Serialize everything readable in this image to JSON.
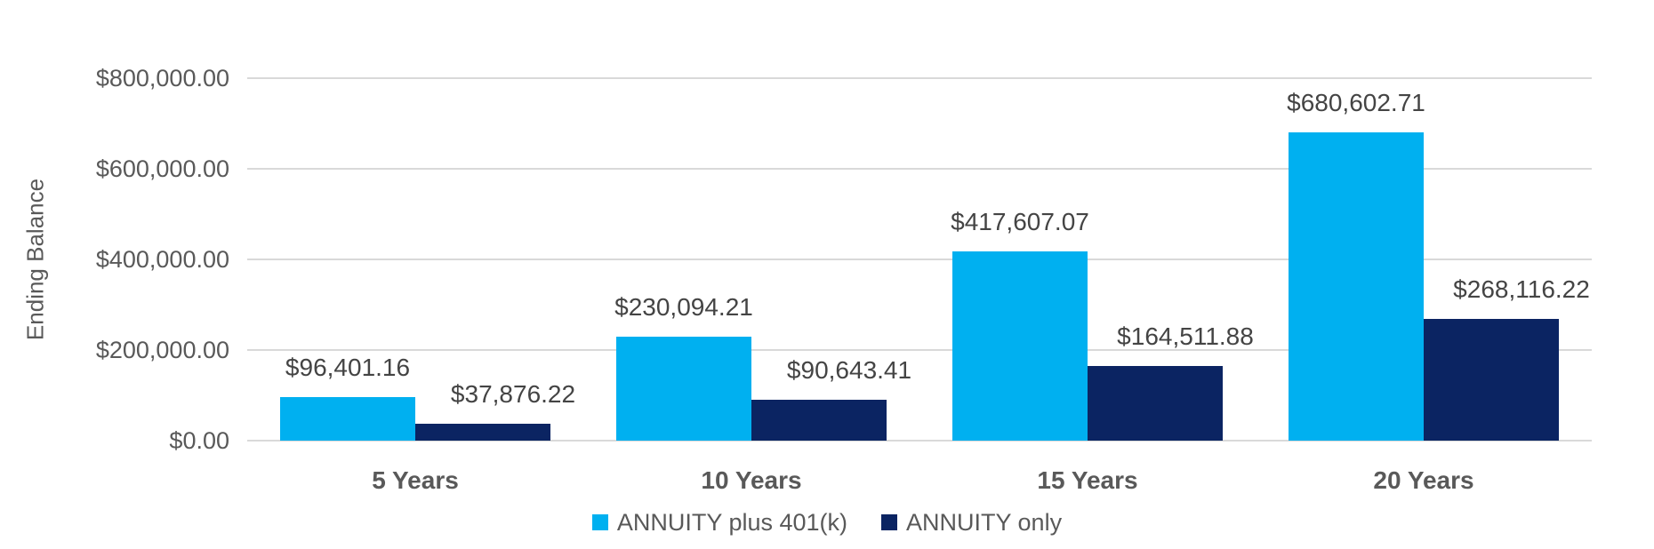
{
  "chart_data": {
    "type": "bar",
    "categories": [
      "5 Years",
      "10 Years",
      "15 Years",
      "20 Years"
    ],
    "series": [
      {
        "name": "ANNUITY plus 401(k)",
        "color": "#00B0F0",
        "values": [
          96401.16,
          230094.21,
          417607.07,
          680602.71
        ],
        "labels": [
          "$96,401.16",
          "$230,094.21",
          "$417,607.07",
          "$680,602.71"
        ]
      },
      {
        "name": "ANNUITY only",
        "color": "#0B2462",
        "values": [
          37876.22,
          90643.41,
          164511.88,
          268116.22
        ],
        "labels": [
          "$37,876.22",
          "$90,643.41",
          "$164,511.88",
          "$268,116.22"
        ]
      }
    ],
    "ylabel": "Ending Balance",
    "ylim": [
      0,
      800000
    ],
    "y_ticks": [
      {
        "value": 0,
        "label": "$0.00"
      },
      {
        "value": 200000,
        "label": "$200,000.00"
      },
      {
        "value": 400000,
        "label": "$400,000.00"
      },
      {
        "value": 600000,
        "label": "$600,000.00"
      },
      {
        "value": 800000,
        "label": "$800,000.00"
      }
    ],
    "grid": "horizontal",
    "legend_position": "bottom",
    "colors": {
      "gridline": "#d9d9d9",
      "axis_text": "#595959",
      "data_label_text": "#444444",
      "background": "#ffffff"
    }
  }
}
